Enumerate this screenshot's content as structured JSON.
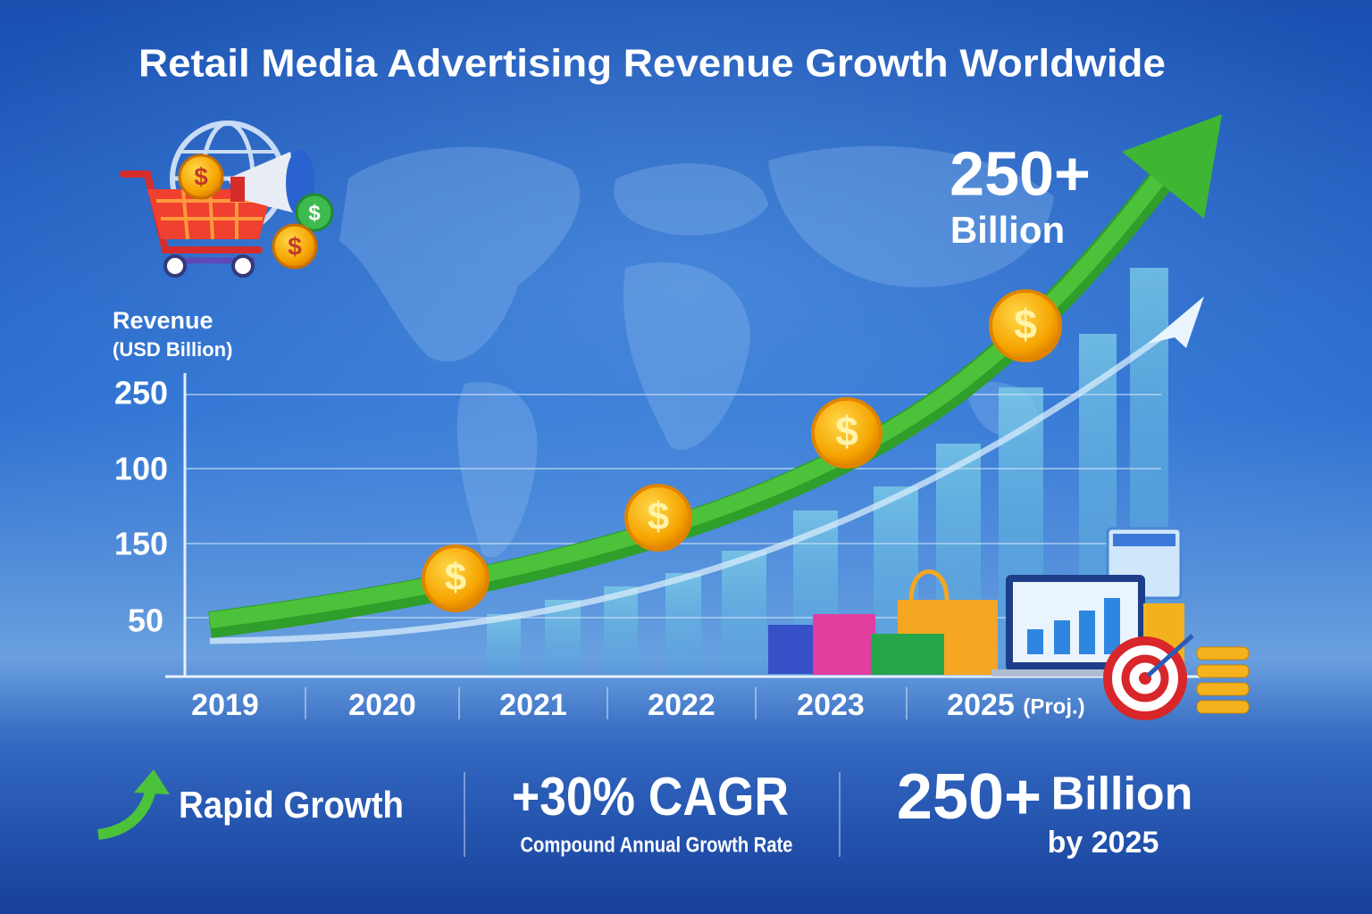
{
  "header": {
    "title": "Retail Media Advertising Revenue Growth Worldwide"
  },
  "callout": {
    "value": "250+",
    "unit": "Billion"
  },
  "coin_symbol": "$",
  "axis": {
    "title": "Revenue",
    "subtitle": "(USD Billion)",
    "y_labels": [
      "250",
      "100",
      "150",
      "50"
    ],
    "x_labels": [
      "2019",
      "2020",
      "2021",
      "2022",
      "2023",
      "2025"
    ],
    "x_note": "(Proj.)"
  },
  "footer": {
    "growth": "Rapid Growth",
    "cagr": "+30% CAGR",
    "cagr_caption": "Compound Annual Growth Rate",
    "total_value": "250+",
    "total_unit": "Billion",
    "total_caption": "by 2025"
  }
}
